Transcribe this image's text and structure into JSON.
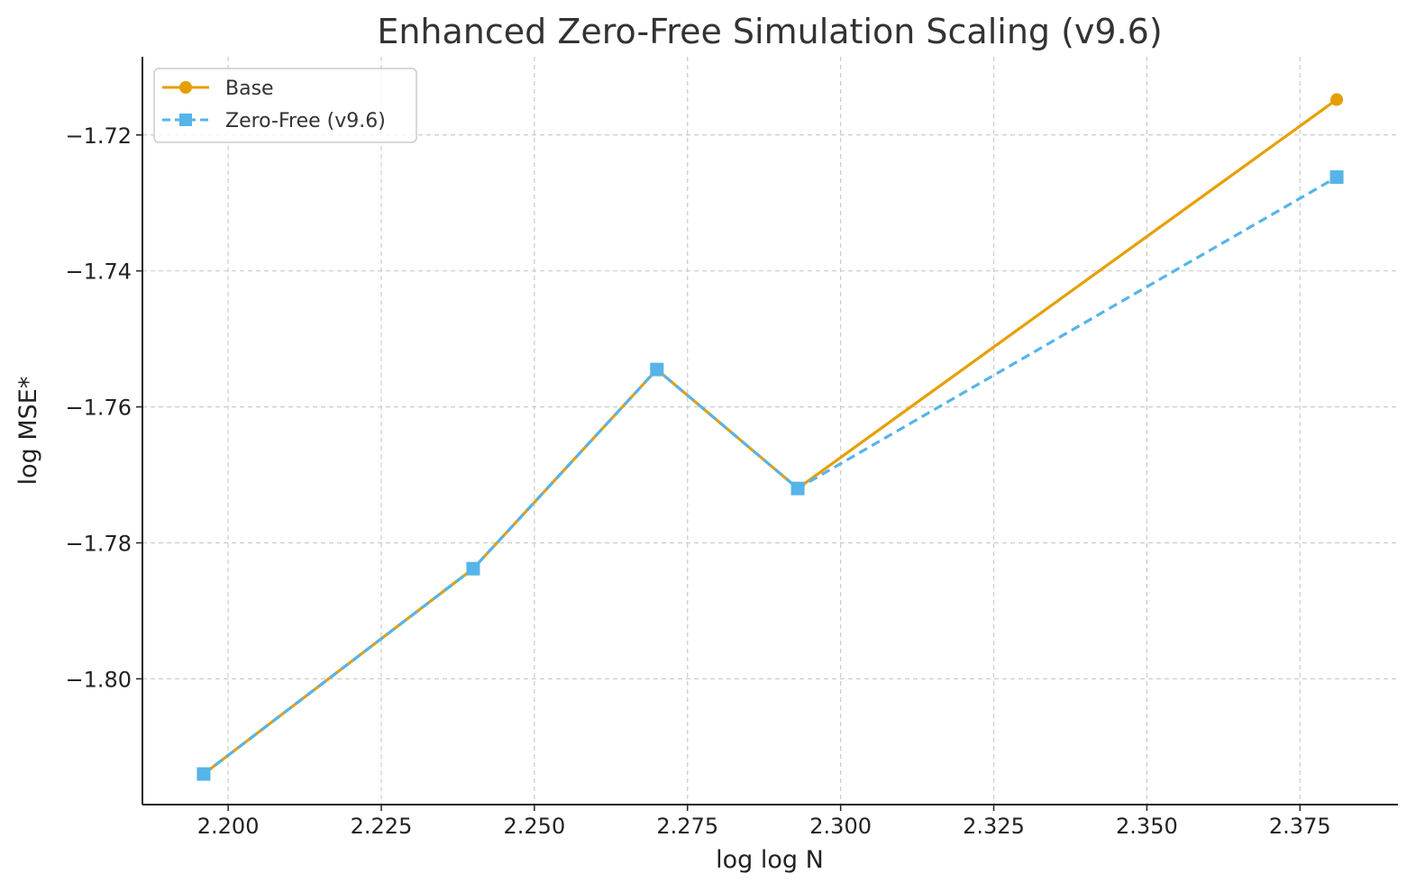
{
  "chart_data": {
    "type": "line",
    "title": "Enhanced Zero-Free Simulation Scaling (v9.6)",
    "xlabel": "log log N",
    "ylabel": "log MSE*",
    "x": [
      2.196,
      2.24,
      2.27,
      2.293,
      2.381
    ],
    "xlim": [
      2.186,
      2.391
    ],
    "ylim": [
      -1.8185,
      -1.7085
    ],
    "xticks": [
      "2.200",
      "2.225",
      "2.250",
      "2.275",
      "2.300",
      "2.325",
      "2.350",
      "2.375"
    ],
    "yticks": [
      "−1.72",
      "−1.74",
      "−1.76",
      "−1.78",
      "−1.80"
    ],
    "grid": true,
    "legend_position": "upper-left",
    "series": [
      {
        "name": "Base",
        "values": [
          -1.814,
          -1.7838,
          -1.7545,
          -1.772,
          -1.7148
        ],
        "color": "#E69F00",
        "line_style": "solid",
        "marker": "circle"
      },
      {
        "name": "Zero-Free (v9.6)",
        "values": [
          -1.814,
          -1.7838,
          -1.7545,
          -1.772,
          -1.7262
        ],
        "color": "#56B4E9",
        "line_style": "dashed",
        "marker": "square"
      }
    ]
  }
}
